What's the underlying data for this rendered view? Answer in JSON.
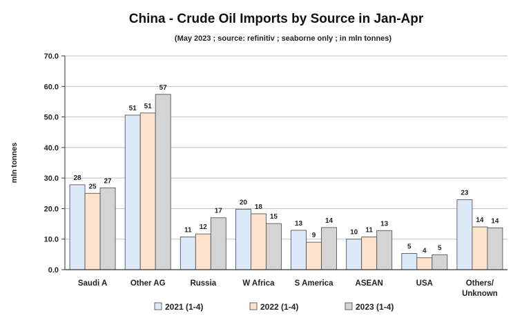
{
  "chart_data": {
    "type": "bar",
    "title": "China - Crude Oil Imports by Source in Jan-Apr",
    "subtitle": "(May 2023 ; source: refinitiv ; seaborne only ; in mln tonnes)",
    "ylabel": "mln tonnes",
    "xlabel": "",
    "ylim": [
      0,
      70
    ],
    "yticks": [
      0,
      10,
      20,
      30,
      40,
      50,
      60,
      70
    ],
    "ytick_labels": [
      "0.0",
      "10.0",
      "20.0",
      "30.0",
      "40.0",
      "50.0",
      "60.0",
      "70.0"
    ],
    "grid": true,
    "legend_position": "bottom",
    "categories": [
      [
        "Saudi A"
      ],
      [
        "Other AG"
      ],
      [
        "Russia"
      ],
      [
        "W Africa"
      ],
      [
        "S America"
      ],
      [
        "ASEAN"
      ],
      [
        "USA"
      ],
      [
        "Others/",
        "Unknown"
      ]
    ],
    "series": [
      {
        "name": "2021 (1-4)",
        "color": "#dce9f8",
        "values": [
          27.8,
          50.6,
          10.7,
          19.8,
          12.9,
          10.0,
          5.3,
          22.9
        ],
        "labels": [
          "28",
          "51",
          "11",
          "20",
          "13",
          "10",
          "5",
          "23"
        ]
      },
      {
        "name": "2022 (1-4)",
        "color": "#fde2cc",
        "values": [
          25.0,
          51.3,
          11.7,
          18.3,
          9.0,
          10.7,
          3.9,
          14.0
        ],
        "labels": [
          "25",
          "51",
          "12",
          "18",
          "9",
          "11",
          "4",
          "14"
        ]
      },
      {
        "name": "2023 (1-4)",
        "color": "#d4d4d4",
        "values": [
          26.8,
          57.4,
          17.0,
          15.1,
          13.8,
          12.8,
          4.9,
          13.7
        ],
        "labels": [
          "27",
          "57",
          "17",
          "15",
          "14",
          "13",
          "5",
          "14"
        ]
      }
    ]
  }
}
